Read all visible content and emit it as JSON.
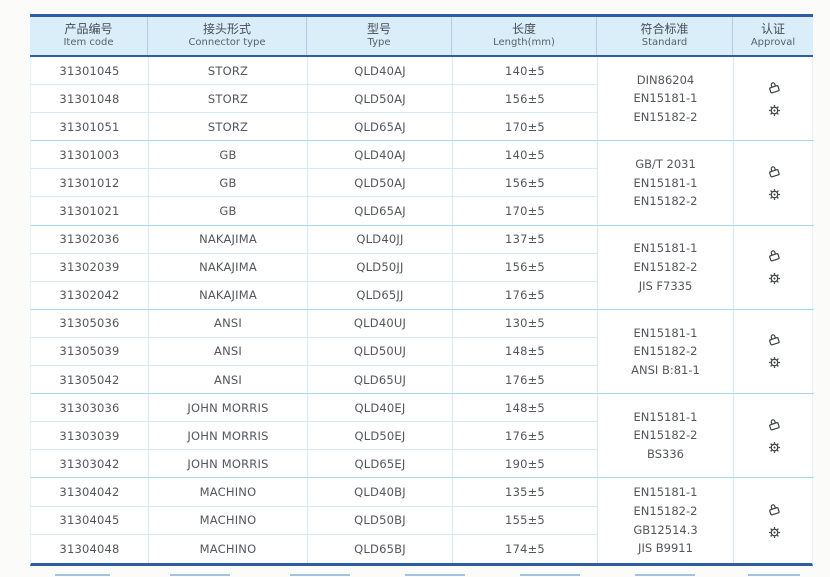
{
  "colors": {
    "accent_blue": "#2e5ca6",
    "header_bg": "#d9eef9",
    "grid_line": "#d4ebf7",
    "group_line": "#a6d8ee",
    "text": "#53565c",
    "icon": "#3c4043"
  },
  "table": {
    "columns": [
      {
        "zh": "产品编号",
        "en": "Item code"
      },
      {
        "zh": "接头形式",
        "en": "Connector type"
      },
      {
        "zh": "型号",
        "en": "Type"
      },
      {
        "zh": "长度",
        "en": "Length(mm)"
      },
      {
        "zh": "符合标准",
        "en": "Standard"
      },
      {
        "zh": "认证",
        "en": "Approval"
      }
    ],
    "groups": [
      {
        "rows": [
          [
            "31301045",
            "STORZ",
            "QLD40AJ",
            "140±5"
          ],
          [
            "31301048",
            "STORZ",
            "QLD50AJ",
            "156±5"
          ],
          [
            "31301051",
            "STORZ",
            "QLD65AJ",
            "170±5"
          ]
        ],
        "standards": [
          "DIN86204",
          "EN15181-1",
          "EN15182-2"
        ]
      },
      {
        "rows": [
          [
            "31301003",
            "GB",
            "QLD40AJ",
            "140±5"
          ],
          [
            "31301012",
            "GB",
            "QLD50AJ",
            "156±5"
          ],
          [
            "31301021",
            "GB",
            "QLD65AJ",
            "170±5"
          ]
        ],
        "standards": [
          "GB/T 2031",
          "EN15181-1",
          "EN15182-2"
        ]
      },
      {
        "rows": [
          [
            "31302036",
            "NAKAJIMA",
            "QLD40JJ",
            "137±5"
          ],
          [
            "31302039",
            "NAKAJIMA",
            "QLD50JJ",
            "156±5"
          ],
          [
            "31302042",
            "NAKAJIMA",
            "QLD65JJ",
            "176±5"
          ]
        ],
        "standards": [
          "EN15181-1",
          "EN15182-2",
          "JIS F7335"
        ]
      },
      {
        "rows": [
          [
            "31305036",
            "ANSI",
            "QLD40UJ",
            "130±5"
          ],
          [
            "31305039",
            "ANSI",
            "QLD50UJ",
            "148±5"
          ],
          [
            "31305042",
            "ANSI",
            "QLD65UJ",
            "176±5"
          ]
        ],
        "standards": [
          "EN15181-1",
          "EN15182-2",
          "ANSI B:81-1"
        ]
      },
      {
        "rows": [
          [
            "31303036",
            "JOHN MORRIS",
            "QLD40EJ",
            "148±5"
          ],
          [
            "31303039",
            "JOHN MORRIS",
            "QLD50EJ",
            "176±5"
          ],
          [
            "31303042",
            "JOHN MORRIS",
            "QLD65EJ",
            "190±5"
          ]
        ],
        "standards": [
          "EN15181-1",
          "EN15182-2",
          "BS336"
        ]
      },
      {
        "rows": [
          [
            "31304042",
            "MACHINO",
            "QLD40BJ",
            "135±5"
          ],
          [
            "31304045",
            "MACHINO",
            "QLD50BJ",
            "155±5"
          ],
          [
            "31304048",
            "MACHINO",
            "QLD65BJ",
            "174±5"
          ]
        ],
        "standards": [
          "EN15181-1",
          "EN15182-2",
          "GB12514.3",
          "JIS B9911"
        ]
      }
    ],
    "approval_icons": [
      "certificate-icon",
      "seal-icon"
    ]
  }
}
